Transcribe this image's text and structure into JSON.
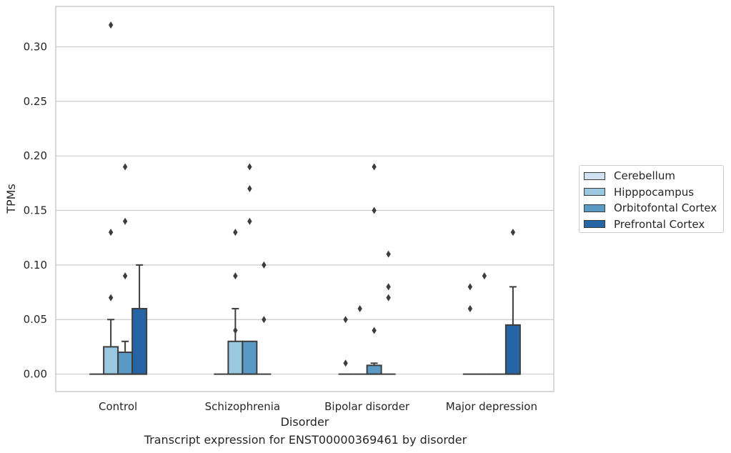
{
  "chart_data": {
    "type": "box",
    "title": "",
    "caption": "Transcript expression for ENST00000369461 by disorder",
    "xlabel": "Disorder",
    "ylabel": "TPMs",
    "ylim": [
      -0.016,
      0.337
    ],
    "yticks": [
      "0.00",
      "0.05",
      "0.10",
      "0.15",
      "0.20",
      "0.25",
      "0.30"
    ],
    "categories": [
      "Control",
      "Schizophrenia",
      "Bipolar disorder",
      "Major depression"
    ],
    "grid": true,
    "legend_position": "right",
    "series": [
      {
        "name": "Cerebellum",
        "color": "#d0e1f1",
        "boxes": [
          {
            "q1": 0,
            "median": 0,
            "q3": 0,
            "whisker_low": 0,
            "whisker_high": 0,
            "outliers": []
          },
          {
            "q1": 0,
            "median": 0,
            "q3": 0,
            "whisker_low": 0,
            "whisker_high": 0,
            "outliers": []
          },
          {
            "q1": 0,
            "median": 0,
            "q3": 0,
            "whisker_low": 0,
            "whisker_high": 0,
            "outliers": [
              0.05,
              0.01
            ]
          },
          {
            "q1": 0,
            "median": 0,
            "q3": 0,
            "whisker_low": 0,
            "whisker_high": 0,
            "outliers": [
              0.08,
              0.06
            ]
          }
        ]
      },
      {
        "name": "Hipppocampus",
        "color": "#9ac8e0",
        "boxes": [
          {
            "q1": 0,
            "median": 0,
            "q3": 0.025,
            "whisker_low": 0,
            "whisker_high": 0.05,
            "outliers": [
              0.32,
              0.13,
              0.07
            ]
          },
          {
            "q1": 0,
            "median": 0,
            "q3": 0.03,
            "whisker_low": 0,
            "whisker_high": 0.06,
            "outliers": [
              0.13,
              0.09,
              0.04
            ]
          },
          {
            "q1": 0,
            "median": 0,
            "q3": 0,
            "whisker_low": 0,
            "whisker_high": 0,
            "outliers": [
              0.06
            ]
          },
          {
            "q1": 0,
            "median": 0,
            "q3": 0,
            "whisker_low": 0,
            "whisker_high": 0,
            "outliers": [
              0.09
            ]
          }
        ]
      },
      {
        "name": "Orbitofontal Cortex",
        "color": "#5a9ac6",
        "boxes": [
          {
            "q1": 0,
            "median": 0,
            "q3": 0.02,
            "whisker_low": 0,
            "whisker_high": 0.03,
            "outliers": [
              0.19,
              0.14,
              0.09
            ]
          },
          {
            "q1": 0,
            "median": 0,
            "q3": 0.03,
            "whisker_low": 0,
            "whisker_high": 0.03,
            "outliers": [
              0.19,
              0.17,
              0.14
            ]
          },
          {
            "q1": 0,
            "median": 0,
            "q3": 0.008,
            "whisker_low": 0,
            "whisker_high": 0.01,
            "outliers": [
              0.19,
              0.15,
              0.04
            ]
          },
          {
            "q1": 0,
            "median": 0,
            "q3": 0,
            "whisker_low": 0,
            "whisker_high": 0,
            "outliers": []
          }
        ]
      },
      {
        "name": "Prefrontal Cortex",
        "color": "#2665a5",
        "boxes": [
          {
            "q1": 0,
            "median": 0,
            "q3": 0.06,
            "whisker_low": 0,
            "whisker_high": 0.1,
            "outliers": []
          },
          {
            "q1": 0,
            "median": 0,
            "q3": 0,
            "whisker_low": 0,
            "whisker_high": 0,
            "outliers": [
              0.1,
              0.05
            ]
          },
          {
            "q1": 0,
            "median": 0,
            "q3": 0,
            "whisker_low": 0,
            "whisker_high": 0,
            "outliers": [
              0.11,
              0.08,
              0.07
            ]
          },
          {
            "q1": 0,
            "median": 0,
            "q3": 0.045,
            "whisker_low": 0,
            "whisker_high": 0.08,
            "outliers": [
              0.13
            ]
          }
        ]
      }
    ]
  }
}
